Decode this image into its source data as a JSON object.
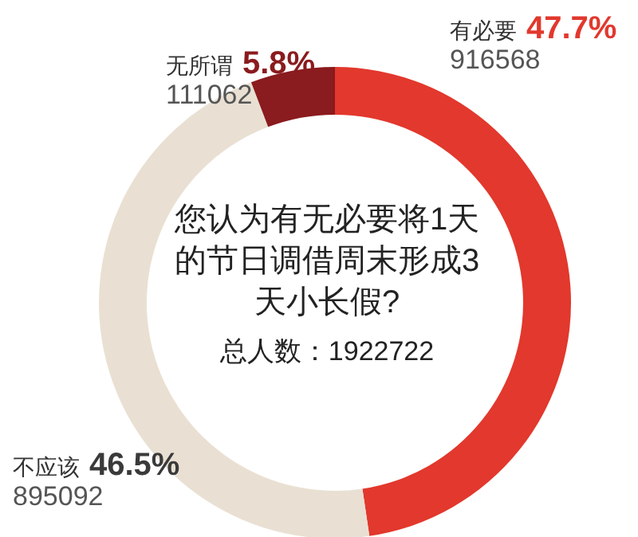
{
  "chart_data": {
    "type": "donut",
    "title": "您认为有无必要将1天的节日调借周末形成3天小长假?",
    "subtitle": "总人数：1922722",
    "categories": [
      "有必要",
      "不应该",
      "无所谓"
    ],
    "values": [
      916568,
      895092,
      111062
    ],
    "colors": [
      "#e2382d",
      "#e9e0d3",
      "#8a1b1e"
    ],
    "data_labels": true,
    "annotations": [
      "47.7%",
      "46.5%",
      "5.8%"
    ],
    "legend": false
  }
}
